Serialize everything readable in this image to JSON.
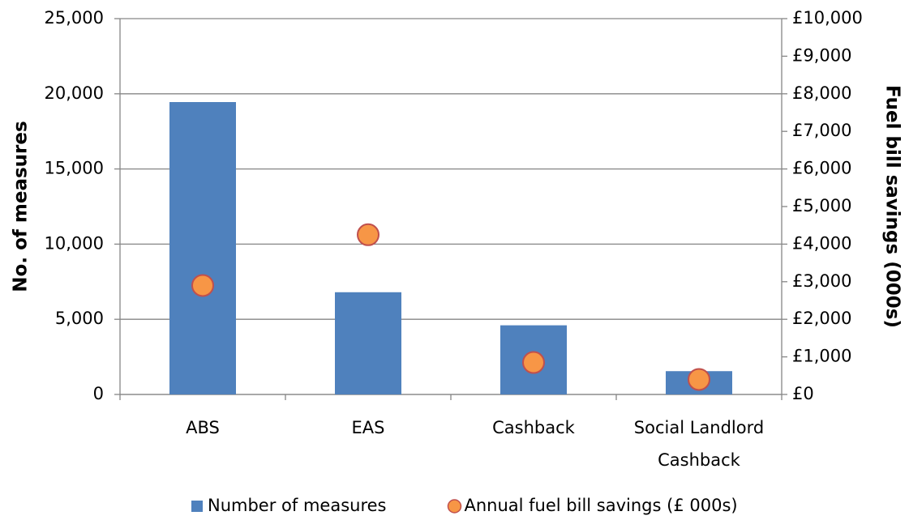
{
  "chart_data": {
    "type": "bar",
    "categories": [
      "ABS",
      "EAS",
      "Cashback",
      "Social Landlord Cashback"
    ],
    "series": [
      {
        "name": "Number of measures",
        "color": "#4f81bd",
        "values": [
          19450,
          6800,
          4600,
          1550
        ]
      },
      {
        "name": "Annual fuel bill savings (£ 000s)",
        "color": "#f79646",
        "type": "scatter",
        "axis": "y2",
        "values": [
          2900,
          4250,
          850,
          400
        ]
      }
    ],
    "ylabel": "No. of measures",
    "y2label": "Fuel bill savings (000s)",
    "ylim": [
      0,
      25000
    ],
    "yticks": [
      0,
      {
        "value": 5000,
        "label": "5,000"
      },
      {
        "value": 10000,
        "label": "10,000"
      },
      {
        "value": 15000,
        "label": "15,000"
      },
      {
        "value": 20000,
        "label": "20,000"
      },
      {
        "value": 25000,
        "label": "25,000"
      }
    ],
    "y2lim": [
      0,
      10000
    ],
    "y2ticks": [
      {
        "value": 0,
        "label": "£0"
      },
      {
        "value": 1000,
        "label": "£1,000"
      },
      {
        "value": 2000,
        "label": "£2,000"
      },
      {
        "value": 3000,
        "label": "£3,000"
      },
      {
        "value": 4000,
        "label": "£4,000"
      },
      {
        "value": 5000,
        "label": "£5,000"
      },
      {
        "value": 6000,
        "label": "£6,000"
      },
      {
        "value": 7000,
        "label": "£7,000"
      },
      {
        "value": 8000,
        "label": "£8,000"
      },
      {
        "value": 9000,
        "label": "£9,000"
      },
      {
        "value": 10000,
        "label": "£10,000"
      }
    ],
    "grid": true,
    "legend": "bottom"
  }
}
